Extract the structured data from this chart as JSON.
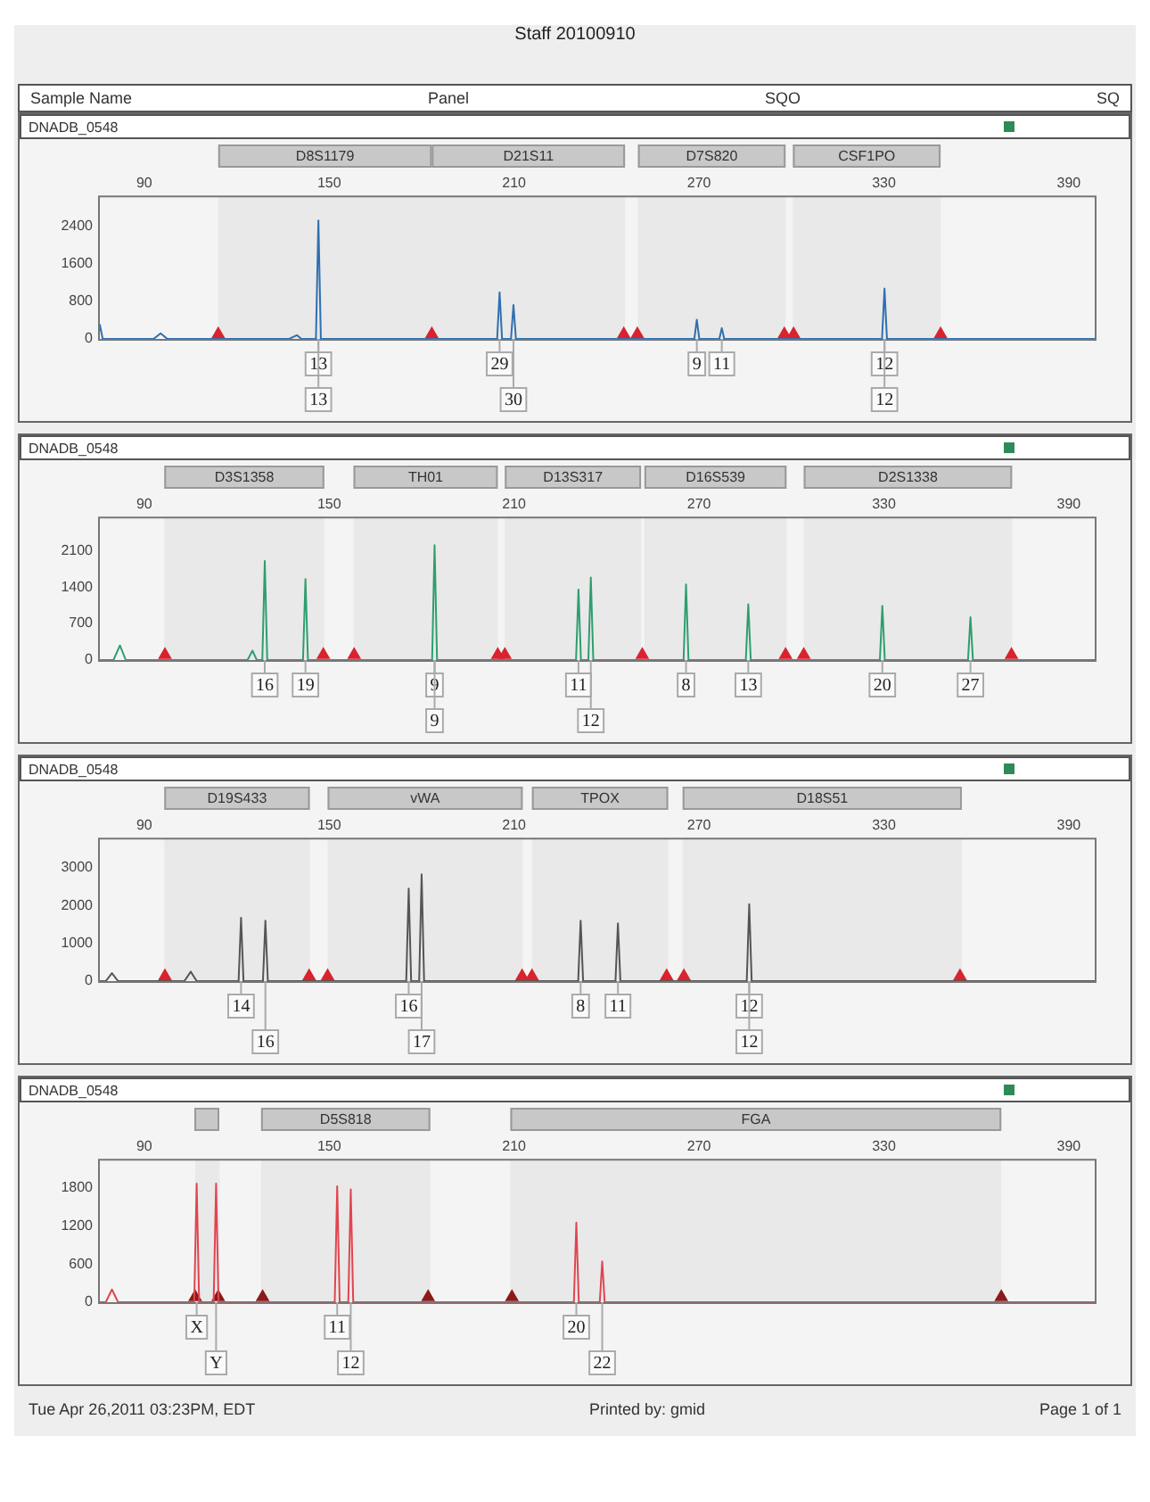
{
  "chart_data": [
    {
      "type": "line",
      "title": "Staff 20100910",
      "subtitle": "DNADB_0548",
      "xlim": [
        75,
        399
      ],
      "xticks": [
        90,
        150,
        210,
        270,
        330,
        390
      ],
      "ylim": [
        0,
        3050
      ],
      "yticks": [
        0,
        800,
        1600,
        2400
      ],
      "grid": false,
      "legend": false,
      "series": [
        {
          "type": "line",
          "color": "#2f6fb0",
          "marker": "none",
          "x": [
            75,
            75.6,
            76.5,
            93,
            95.3,
            97.5,
            137,
            139.5,
            141,
            145.7,
            146.5,
            147.3,
            204.5,
            205.3,
            206.1,
            209,
            209.8,
            210.6,
            268.5,
            269.3,
            270.1,
            276.6,
            277.4,
            278.2,
            329.4,
            330.2,
            331,
            399
          ],
          "values": [
            0,
            300,
            0,
            0,
            120,
            0,
            0,
            80,
            0,
            0,
            2520,
            0,
            0,
            990,
            0,
            0,
            720,
            0,
            0,
            410,
            0,
            0,
            230,
            0,
            0,
            1070,
            0,
            0
          ]
        },
        {
          "type": "scatter",
          "color": "#d9232e",
          "marker": "triangle",
          "x": [
            114,
            183.3,
            245.6,
            250,
            297.7,
            300.7,
            348.4
          ],
          "values": [
            100,
            100,
            100,
            100,
            100,
            100,
            100
          ]
        }
      ],
      "bands": [
        {
          "axis": "x",
          "from": 114,
          "to": 183.3,
          "label": "D8S1179",
          "color": "#c8c8c8"
        },
        {
          "axis": "x",
          "from": 183.3,
          "to": 246,
          "label": "D21S11",
          "color": "#c8c8c8"
        },
        {
          "axis": "x",
          "from": 250.2,
          "to": 298.1,
          "label": "D7S820",
          "color": "#c8c8c8"
        },
        {
          "axis": "x",
          "from": 300.5,
          "to": 348.4,
          "label": "CSF1PO",
          "color": "#c8c8c8"
        }
      ],
      "annotations": [
        "Sample Name",
        "Panel",
        "SQO",
        "SQ",
        {
          "text": "13",
          "x": 146.5,
          "y": 0
        },
        {
          "text": "13",
          "x": 146.5,
          "y": 0
        },
        {
          "text": "29",
          "x": 205.3,
          "y": 0
        },
        {
          "text": "30",
          "x": 209.8,
          "y": 0
        },
        {
          "text": "9",
          "x": 269.3,
          "y": 0
        },
        {
          "text": "11",
          "x": 277.4,
          "y": 0
        },
        {
          "text": "12",
          "x": 330.2,
          "y": 0
        },
        {
          "text": "12",
          "x": 330.2,
          "y": 0
        }
      ]
    },
    {
      "type": "line",
      "subtitle": "DNADB_0548",
      "xlim": [
        75,
        399
      ],
      "xticks": [
        90,
        150,
        210,
        270,
        330,
        390
      ],
      "ylim": [
        0,
        2750
      ],
      "yticks": [
        0,
        700,
        1400,
        2100
      ],
      "grid": false,
      "legend": false,
      "series": [
        {
          "type": "line",
          "color": "#2e9e6e",
          "marker": "none",
          "x": [
            75,
            80,
            82.1,
            84,
            123.5,
            125.1,
            126.5,
            128.3,
            129.1,
            129.9,
            141.5,
            142.3,
            143.1,
            183.4,
            184.2,
            185,
            230.1,
            230.9,
            231.7,
            234.1,
            234.9,
            235.7,
            265,
            265.8,
            266.6,
            285.2,
            286,
            286.8,
            328.7,
            329.5,
            330.3,
            357.3,
            358.1,
            358.9,
            399
          ],
          "values": [
            0,
            0,
            280,
            0,
            0,
            180,
            0,
            0,
            1900,
            0,
            0,
            1550,
            0,
            0,
            2200,
            0,
            0,
            1350,
            0,
            0,
            1580,
            0,
            0,
            1450,
            0,
            0,
            1070,
            0,
            0,
            1040,
            0,
            0,
            820,
            0,
            0
          ]
        },
        {
          "type": "scatter",
          "color": "#d9232e",
          "marker": "triangle",
          "x": [
            96.7,
            148.1,
            158.1,
            204.7,
            207,
            251.6,
            298.1,
            304,
            371.4
          ],
          "values": [
            100,
            100,
            100,
            100,
            100,
            100,
            100,
            100,
            100
          ]
        }
      ],
      "bands": [
        {
          "axis": "x",
          "from": 96.5,
          "to": 148.4,
          "label": "D3S1358",
          "color": "#c8c8c8"
        },
        {
          "axis": "x",
          "from": 157.9,
          "to": 204.7,
          "label": "TH01",
          "color": "#c8c8c8"
        },
        {
          "axis": "x",
          "from": 207,
          "to": 251.2,
          "label": "D13S317",
          "color": "#c8c8c8"
        },
        {
          "axis": "x",
          "from": 252.3,
          "to": 298.4,
          "label": "D16S539",
          "color": "#c8c8c8"
        },
        {
          "axis": "x",
          "from": 304,
          "to": 371.6,
          "label": "D2S1338",
          "color": "#c8c8c8"
        }
      ],
      "annotations": [
        {
          "text": "16",
          "x": 129.1,
          "y": 0
        },
        {
          "text": "19",
          "x": 142.3,
          "y": 0
        },
        {
          "text": "9",
          "x": 184.2,
          "y": 0
        },
        {
          "text": "9",
          "x": 184.2,
          "y": 0
        },
        {
          "text": "11",
          "x": 230.9,
          "y": 0
        },
        {
          "text": "12",
          "x": 234.9,
          "y": 0
        },
        {
          "text": "8",
          "x": 265.8,
          "y": 0
        },
        {
          "text": "13",
          "x": 286,
          "y": 0
        },
        {
          "text": "20",
          "x": 329.5,
          "y": 0
        },
        {
          "text": "27",
          "x": 358.1,
          "y": 0
        }
      ]
    },
    {
      "type": "line",
      "subtitle": "DNADB_0548",
      "xlim": [
        75,
        399
      ],
      "xticks": [
        90,
        150,
        210,
        270,
        330,
        390
      ],
      "ylim": [
        0,
        3800
      ],
      "yticks": [
        0,
        1000,
        2000,
        3000
      ],
      "grid": false,
      "legend": false,
      "series": [
        {
          "type": "line",
          "color": "#555555",
          "marker": "none",
          "x": [
            75,
            77.5,
            79.5,
            81.5,
            103,
            105.1,
            107,
            120.6,
            121.4,
            122.2,
            128.5,
            129.3,
            130.1,
            175,
            175.8,
            176.6,
            179.2,
            180,
            180.8,
            230.8,
            231.6,
            232.4,
            242.9,
            243.7,
            244.5,
            285.5,
            286.3,
            287.1,
            399
          ],
          "values": [
            0,
            0,
            210,
            0,
            0,
            250,
            0,
            0,
            1680,
            0,
            0,
            1600,
            0,
            0,
            2450,
            0,
            0,
            2830,
            0,
            0,
            1600,
            0,
            0,
            1530,
            0,
            0,
            2040,
            0,
            0
          ]
        },
        {
          "type": "scatter",
          "color": "#d9232e",
          "marker": "triangle",
          "x": [
            96.7,
            143.5,
            149.5,
            212.6,
            215.8,
            259.5,
            265.1,
            354.7
          ],
          "values": [
            130,
            130,
            130,
            130,
            130,
            130,
            130,
            130
          ]
        }
      ],
      "bands": [
        {
          "axis": "x",
          "from": 96.5,
          "to": 143.7,
          "label": "D19S433",
          "color": "#c8c8c8"
        },
        {
          "axis": "x",
          "from": 149.5,
          "to": 212.8,
          "label": "vWA",
          "color": "#c8c8c8"
        },
        {
          "axis": "x",
          "from": 215.8,
          "to": 260,
          "label": "TPOX",
          "color": "#c8c8c8"
        },
        {
          "axis": "x",
          "from": 264.7,
          "to": 355.3,
          "label": "D18S51",
          "color": "#c8c8c8"
        }
      ],
      "annotations": [
        {
          "text": "14",
          "x": 121.4,
          "y": 0
        },
        {
          "text": "16",
          "x": 129.3,
          "y": 0
        },
        {
          "text": "16",
          "x": 175.8,
          "y": 0
        },
        {
          "text": "17",
          "x": 180,
          "y": 0
        },
        {
          "text": "8",
          "x": 231.6,
          "y": 0
        },
        {
          "text": "11",
          "x": 243.7,
          "y": 0
        },
        {
          "text": "12",
          "x": 286.3,
          "y": 0
        },
        {
          "text": "12",
          "x": 286.3,
          "y": 0
        }
      ]
    },
    {
      "type": "line",
      "subtitle": "DNADB_0548",
      "xlim": [
        75,
        399
      ],
      "xticks": [
        90,
        150,
        210,
        270,
        330,
        390
      ],
      "ylim": [
        0,
        2250
      ],
      "yticks": [
        0,
        600,
        1200,
        1800
      ],
      "grid": false,
      "legend": false,
      "series": [
        {
          "type": "line",
          "color": "#e0454f",
          "marker": "none",
          "x": [
            75,
            77.5,
            79.5,
            81.5,
            106.2,
            107,
            107.8,
            112.5,
            113.3,
            114.1,
            151.8,
            152.6,
            153.4,
            156.2,
            157,
            157.8,
            229.4,
            230.2,
            231,
            237.8,
            238.6,
            239.4,
            399
          ],
          "values": [
            0,
            0,
            200,
            0,
            0,
            1860,
            0,
            0,
            1860,
            0,
            0,
            1820,
            0,
            0,
            1770,
            0,
            0,
            1250,
            0,
            0,
            640,
            0,
            0
          ]
        },
        {
          "type": "scatter",
          "color": "#8b1a1a",
          "marker": "triangle",
          "x": [
            106.5,
            114,
            128.4,
            182.1,
            209.3,
            368.1
          ],
          "values": [
            80,
            80,
            80,
            80,
            80,
            80
          ]
        }
      ],
      "bands": [
        {
          "axis": "x",
          "from": 106.5,
          "to": 114.4,
          "label": null,
          "color": "#c8c8c8"
        },
        {
          "axis": "x",
          "from": 127.9,
          "to": 182.8,
          "label": "D5S818",
          "color": "#c8c8c8"
        },
        {
          "axis": "x",
          "from": 208.8,
          "to": 368.1,
          "label": "FGA",
          "color": "#c8c8c8"
        }
      ],
      "annotations": [
        {
          "text": "X",
          "x": 107,
          "y": 0
        },
        {
          "text": "Y",
          "x": 113.3,
          "y": 0
        },
        {
          "text": "11",
          "x": 152.6,
          "y": 0
        },
        {
          "text": "12",
          "x": 157,
          "y": 0
        },
        {
          "text": "20",
          "x": 230.2,
          "y": 0
        },
        {
          "text": "22",
          "x": 238.6,
          "y": 0
        },
        "Tue Apr 26,2011 03:23PM, EDT",
        "Printed by: gmid",
        "Page 1 of 1"
      ]
    }
  ]
}
